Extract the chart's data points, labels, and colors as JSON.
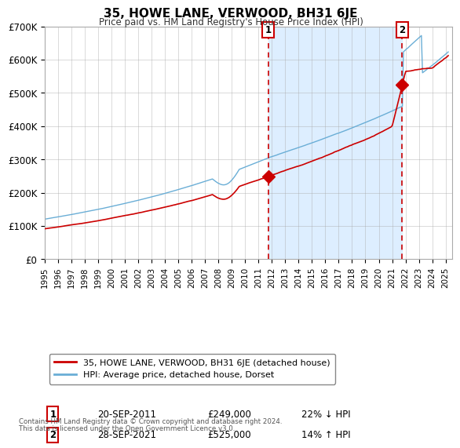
{
  "title": "35, HOWE LANE, VERWOOD, BH31 6JE",
  "subtitle": "Price paid vs. HM Land Registry's House Price Index (HPI)",
  "legend_line1": "35, HOWE LANE, VERWOOD, BH31 6JE (detached house)",
  "legend_line2": "HPI: Average price, detached house, Dorset",
  "annotation1_label": "1",
  "annotation1_date": "20-SEP-2011",
  "annotation1_price": "£249,000",
  "annotation1_hpi": "22% ↓ HPI",
  "annotation1_year": 2011.72,
  "annotation1_value": 249000,
  "annotation2_label": "2",
  "annotation2_date": "28-SEP-2021",
  "annotation2_price": "£525,000",
  "annotation2_hpi": "14% ↑ HPI",
  "annotation2_year": 2021.74,
  "annotation2_value": 525000,
  "footnote1": "Contains HM Land Registry data © Crown copyright and database right 2024.",
  "footnote2": "This data is licensed under the Open Government Licence v3.0.",
  "ylim": [
    0,
    700000
  ],
  "yticks": [
    0,
    100000,
    200000,
    300000,
    400000,
    500000,
    600000,
    700000
  ],
  "ytick_labels": [
    "£0",
    "£100K",
    "£200K",
    "£300K",
    "£400K",
    "£500K",
    "£600K",
    "£700K"
  ],
  "hpi_color": "#6aaed6",
  "price_color": "#cc0000",
  "dashed_color": "#cc0000",
  "shade_color": "#ddeeff",
  "background_color": "#ffffff",
  "grid_color": "#aaaaaa",
  "xlim_start": 1995,
  "xlim_end": 2025.5,
  "start_year": 1995.0,
  "end_year": 2025.2
}
